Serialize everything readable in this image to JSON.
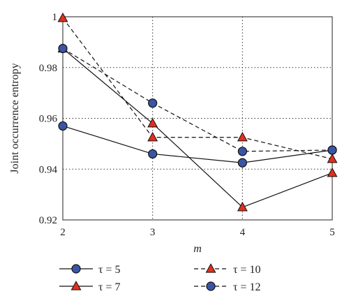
{
  "chart_data": {
    "type": "line",
    "xlabel": "m",
    "ylabel": "Joint occurrence entropy",
    "x": [
      2,
      3,
      4,
      5
    ],
    "xlim": [
      2,
      5
    ],
    "ylim": [
      0.92,
      1.0
    ],
    "xticks": [
      "2",
      "3",
      "4",
      "5"
    ],
    "yticks": [
      "0.92",
      "0.94",
      "0.96",
      "0.98",
      "1"
    ],
    "grid": true,
    "legend_position": "bottom",
    "series": [
      {
        "name": "τ = 5",
        "values": [
          0.957,
          0.946,
          0.9425,
          0.9475
        ],
        "marker": "circle",
        "line": "solid",
        "color": "#3a55a4"
      },
      {
        "name": "τ = 7",
        "values": [
          0.9875,
          0.958,
          0.925,
          0.9385
        ],
        "marker": "triangle",
        "line": "solid",
        "color": "#e0301e"
      },
      {
        "name": "τ = 10",
        "values": [
          0.9995,
          0.9525,
          0.9525,
          0.944
        ],
        "marker": "triangle",
        "line": "dashed",
        "color": "#e0301e"
      },
      {
        "name": "τ = 12",
        "values": [
          0.9875,
          0.966,
          0.947,
          0.9475
        ],
        "marker": "circle",
        "line": "dashed",
        "color": "#3a55a4"
      }
    ]
  }
}
